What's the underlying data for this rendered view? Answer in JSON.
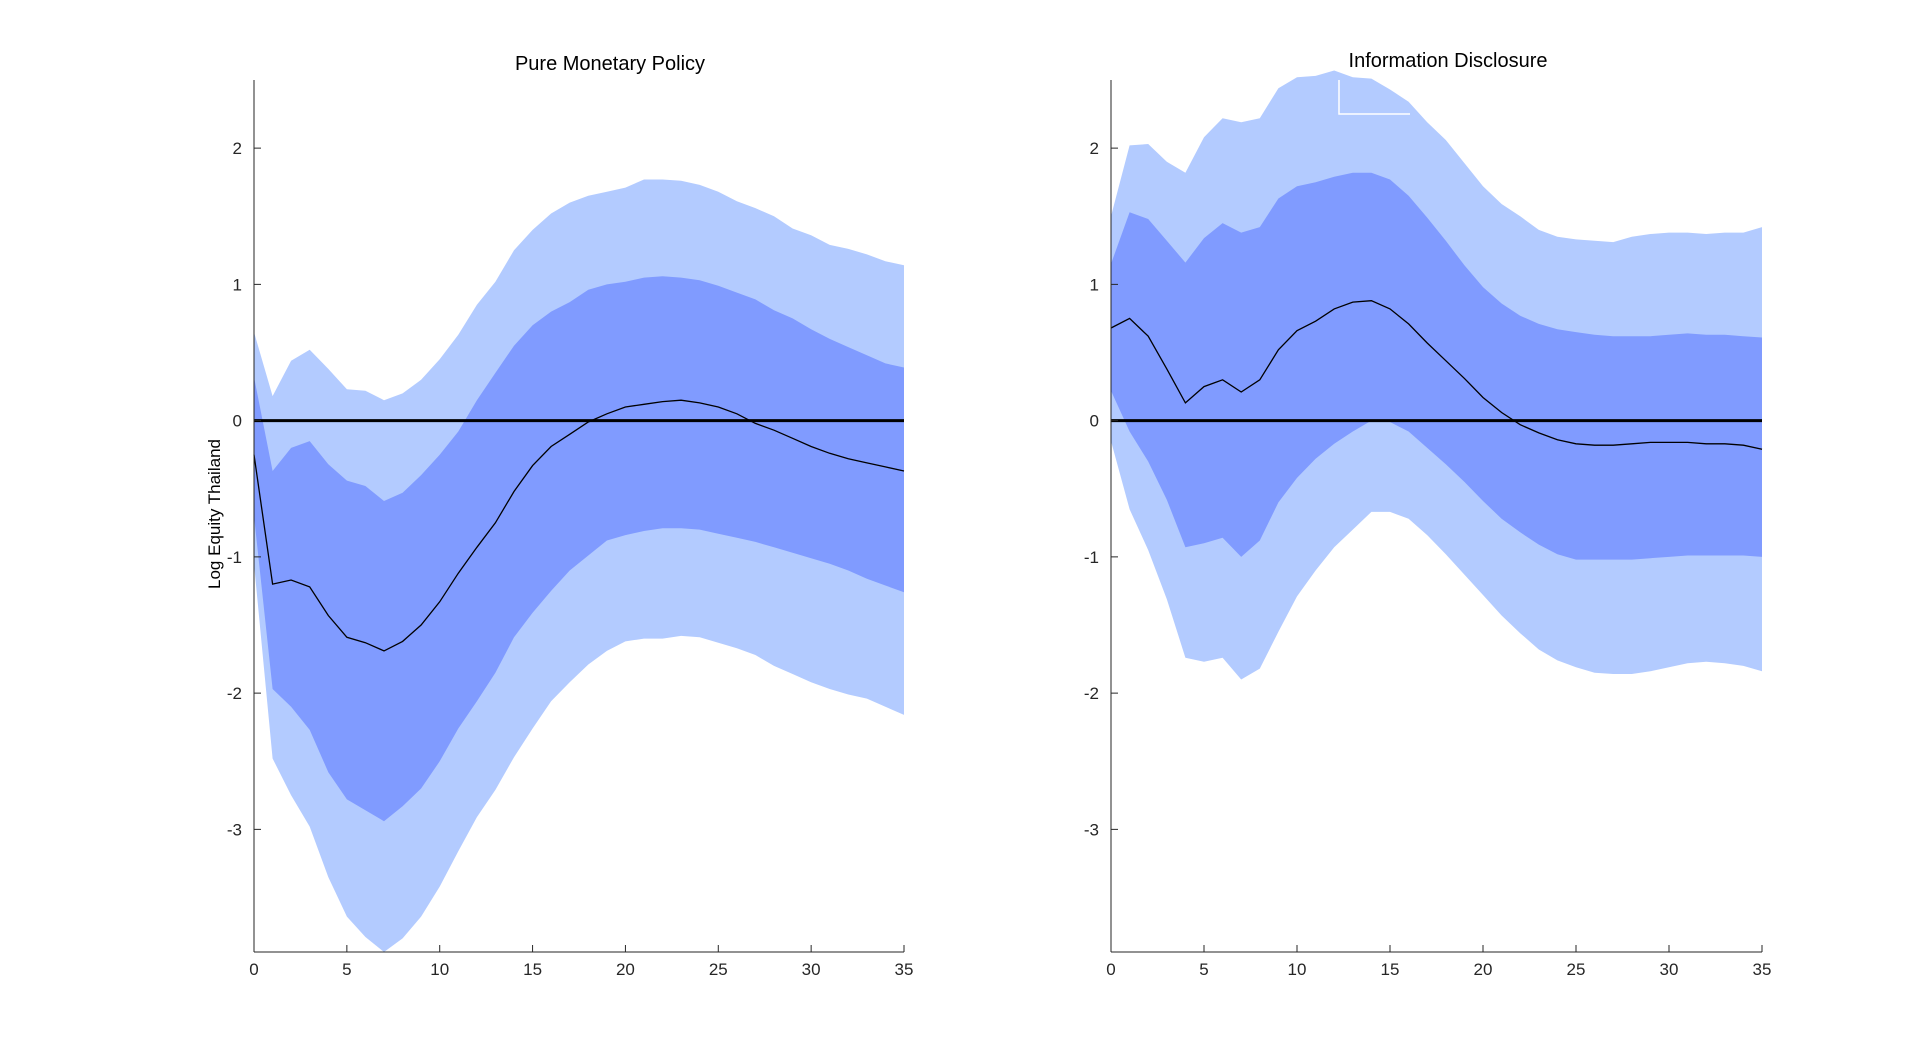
{
  "chart_data": [
    {
      "type": "area",
      "title": "Pure Monetary Policy",
      "xlabel": "",
      "ylabel": "Log Equity Thailand",
      "xlim": [
        0,
        35
      ],
      "ylim": [
        -3.9,
        2.5
      ],
      "xticks": [
        0,
        5,
        10,
        15,
        20,
        25,
        30,
        35
      ],
      "yticks": [
        -3,
        -2,
        -1,
        0,
        1,
        2
      ],
      "x": [
        0,
        1,
        2,
        3,
        4,
        5,
        6,
        7,
        8,
        9,
        10,
        11,
        12,
        13,
        14,
        15,
        16,
        17,
        18,
        19,
        20,
        21,
        22,
        23,
        24,
        25,
        26,
        27,
        28,
        29,
        30,
        31,
        32,
        33,
        34,
        35
      ],
      "colors": {
        "outer_band": "#b3cbff",
        "inner_band": "#809bff",
        "median": "#000000",
        "zero_line": "#000000"
      },
      "series": [
        {
          "name": "outer_upper",
          "values": [
            0.65,
            0.18,
            0.44,
            0.52,
            0.38,
            0.23,
            0.22,
            0.15,
            0.2,
            0.3,
            0.45,
            0.63,
            0.85,
            1.02,
            1.25,
            1.4,
            1.52,
            1.6,
            1.65,
            1.68,
            1.71,
            1.77,
            1.77,
            1.76,
            1.73,
            1.68,
            1.61,
            1.56,
            1.5,
            1.41,
            1.36,
            1.29,
            1.26,
            1.22,
            1.17,
            1.14
          ]
        },
        {
          "name": "inner_upper",
          "values": [
            0.32,
            -0.37,
            -0.2,
            -0.15,
            -0.32,
            -0.44,
            -0.48,
            -0.59,
            -0.53,
            -0.4,
            -0.25,
            -0.08,
            0.15,
            0.35,
            0.55,
            0.7,
            0.8,
            0.87,
            0.96,
            1.0,
            1.02,
            1.05,
            1.06,
            1.05,
            1.03,
            0.99,
            0.94,
            0.89,
            0.81,
            0.75,
            0.67,
            0.6,
            0.54,
            0.48,
            0.42,
            0.39
          ]
        },
        {
          "name": "median",
          "values": [
            -0.25,
            -1.2,
            -1.17,
            -1.22,
            -1.43,
            -1.59,
            -1.63,
            -1.69,
            -1.62,
            -1.5,
            -1.33,
            -1.12,
            -0.93,
            -0.75,
            -0.52,
            -0.33,
            -0.19,
            -0.1,
            -0.01,
            0.05,
            0.1,
            0.12,
            0.14,
            0.15,
            0.13,
            0.1,
            0.05,
            -0.02,
            -0.07,
            -0.13,
            -0.19,
            -0.24,
            -0.28,
            -0.31,
            -0.34,
            -0.37
          ]
        },
        {
          "name": "inner_lower",
          "values": [
            -0.7,
            -1.97,
            -2.1,
            -2.27,
            -2.58,
            -2.78,
            -2.86,
            -2.94,
            -2.83,
            -2.7,
            -2.5,
            -2.26,
            -2.06,
            -1.85,
            -1.59,
            -1.41,
            -1.25,
            -1.1,
            -0.99,
            -0.88,
            -0.84,
            -0.81,
            -0.79,
            -0.79,
            -0.8,
            -0.83,
            -0.86,
            -0.89,
            -0.93,
            -0.97,
            -1.01,
            -1.05,
            -1.1,
            -1.16,
            -1.21,
            -1.26
          ]
        },
        {
          "name": "outer_lower",
          "values": [
            -1.05,
            -2.48,
            -2.75,
            -2.98,
            -3.35,
            -3.64,
            -3.79,
            -3.9,
            -3.8,
            -3.64,
            -3.42,
            -3.16,
            -2.91,
            -2.71,
            -2.47,
            -2.26,
            -2.06,
            -1.92,
            -1.79,
            -1.69,
            -1.62,
            -1.6,
            -1.6,
            -1.58,
            -1.59,
            -1.63,
            -1.67,
            -1.72,
            -1.8,
            -1.86,
            -1.92,
            -1.97,
            -2.01,
            -2.04,
            -2.1,
            -2.16
          ]
        },
        {
          "name": "zero",
          "values": [
            0,
            0,
            0,
            0,
            0,
            0,
            0,
            0,
            0,
            0,
            0,
            0,
            0,
            0,
            0,
            0,
            0,
            0,
            0,
            0,
            0,
            0,
            0,
            0,
            0,
            0,
            0,
            0,
            0,
            0,
            0,
            0,
            0,
            0,
            0,
            0
          ]
        }
      ]
    },
    {
      "type": "area",
      "title": "Information Disclosure",
      "xlabel": "",
      "ylabel": "",
      "xlim": [
        0,
        35
      ],
      "ylim": [
        -3.9,
        2.5
      ],
      "xticks": [
        0,
        5,
        10,
        15,
        20,
        25,
        30,
        35
      ],
      "yticks": [
        -3,
        -2,
        -1,
        0,
        1,
        2
      ],
      "x": [
        0,
        1,
        2,
        3,
        4,
        5,
        6,
        7,
        8,
        9,
        10,
        11,
        12,
        13,
        14,
        15,
        16,
        17,
        18,
        19,
        20,
        21,
        22,
        23,
        24,
        25,
        26,
        27,
        28,
        29,
        30,
        31,
        32,
        33,
        34,
        35
      ],
      "colors": {
        "outer_band": "#b3cbff",
        "inner_band": "#809bff",
        "median": "#000000",
        "zero_line": "#000000"
      },
      "series": [
        {
          "name": "outer_upper",
          "values": [
            1.5,
            2.02,
            2.03,
            1.9,
            1.82,
            2.08,
            2.22,
            2.19,
            2.22,
            2.44,
            2.52,
            2.53,
            2.57,
            2.52,
            2.51,
            2.43,
            2.34,
            2.19,
            2.06,
            1.89,
            1.72,
            1.59,
            1.5,
            1.4,
            1.35,
            1.33,
            1.32,
            1.31,
            1.35,
            1.37,
            1.38,
            1.38,
            1.37,
            1.38,
            1.38,
            1.42
          ]
        },
        {
          "name": "inner_upper",
          "values": [
            1.15,
            1.53,
            1.48,
            1.32,
            1.16,
            1.34,
            1.45,
            1.38,
            1.42,
            1.63,
            1.72,
            1.75,
            1.79,
            1.82,
            1.82,
            1.77,
            1.65,
            1.49,
            1.32,
            1.14,
            0.98,
            0.86,
            0.77,
            0.71,
            0.67,
            0.65,
            0.63,
            0.62,
            0.62,
            0.62,
            0.63,
            0.64,
            0.63,
            0.63,
            0.62,
            0.61
          ]
        },
        {
          "name": "median",
          "values": [
            0.68,
            0.75,
            0.62,
            0.38,
            0.13,
            0.25,
            0.3,
            0.21,
            0.3,
            0.52,
            0.66,
            0.73,
            0.82,
            0.87,
            0.88,
            0.82,
            0.71,
            0.57,
            0.44,
            0.31,
            0.17,
            0.06,
            -0.03,
            -0.09,
            -0.14,
            -0.17,
            -0.18,
            -0.18,
            -0.17,
            -0.16,
            -0.16,
            -0.16,
            -0.17,
            -0.17,
            -0.18,
            -0.21
          ]
        },
        {
          "name": "inner_lower",
          "values": [
            0.22,
            -0.08,
            -0.3,
            -0.58,
            -0.93,
            -0.9,
            -0.86,
            -1.0,
            -0.88,
            -0.6,
            -0.42,
            -0.28,
            -0.17,
            -0.08,
            0.0,
            -0.01,
            -0.08,
            -0.2,
            -0.32,
            -0.45,
            -0.59,
            -0.72,
            -0.82,
            -0.91,
            -0.98,
            -1.02,
            -1.02,
            -1.02,
            -1.02,
            -1.01,
            -1.0,
            -0.99,
            -0.99,
            -0.99,
            -0.99,
            -1.0
          ]
        },
        {
          "name": "outer_lower",
          "values": [
            -0.15,
            -0.65,
            -0.95,
            -1.31,
            -1.74,
            -1.77,
            -1.74,
            -1.9,
            -1.82,
            -1.55,
            -1.29,
            -1.1,
            -0.93,
            -0.8,
            -0.67,
            -0.67,
            -0.72,
            -0.84,
            -0.98,
            -1.13,
            -1.28,
            -1.43,
            -1.56,
            -1.68,
            -1.76,
            -1.81,
            -1.85,
            -1.86,
            -1.86,
            -1.84,
            -1.81,
            -1.78,
            -1.77,
            -1.78,
            -1.8,
            -1.84
          ]
        },
        {
          "name": "zero",
          "values": [
            0,
            0,
            0,
            0,
            0,
            0,
            0,
            0,
            0,
            0,
            0,
            0,
            0,
            0,
            0,
            0,
            0,
            0,
            0,
            0,
            0,
            0,
            0,
            0,
            0,
            0,
            0,
            0,
            0,
            0,
            0,
            0,
            0,
            0,
            0,
            0
          ]
        }
      ]
    }
  ]
}
